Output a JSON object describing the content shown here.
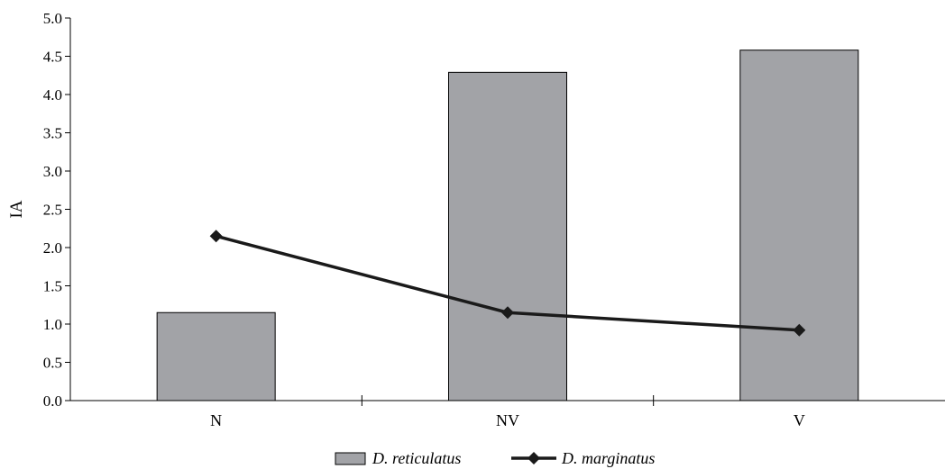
{
  "chart_data": {
    "type": "bar",
    "categories": [
      "N",
      "NV",
      "V"
    ],
    "ylabel": "IA",
    "xlabel": "",
    "title": "",
    "ylim": [
      0,
      5.0
    ],
    "yticks": [
      "0.0",
      "0.5",
      "1.0",
      "1.5",
      "2.0",
      "2.5",
      "3.0",
      "3.5",
      "4.0",
      "4.5",
      "5.0"
    ],
    "grid": false,
    "legend_position": "bottom",
    "series": [
      {
        "name": "D. reticulatus",
        "render": "bar",
        "values": [
          1.15,
          4.29,
          4.58
        ],
        "color": "#a2a3a7"
      },
      {
        "name": "D. marginatus",
        "render": "line",
        "marker": "diamond",
        "values": [
          2.15,
          1.15,
          0.92
        ],
        "color": "#1a1a1a"
      }
    ]
  }
}
